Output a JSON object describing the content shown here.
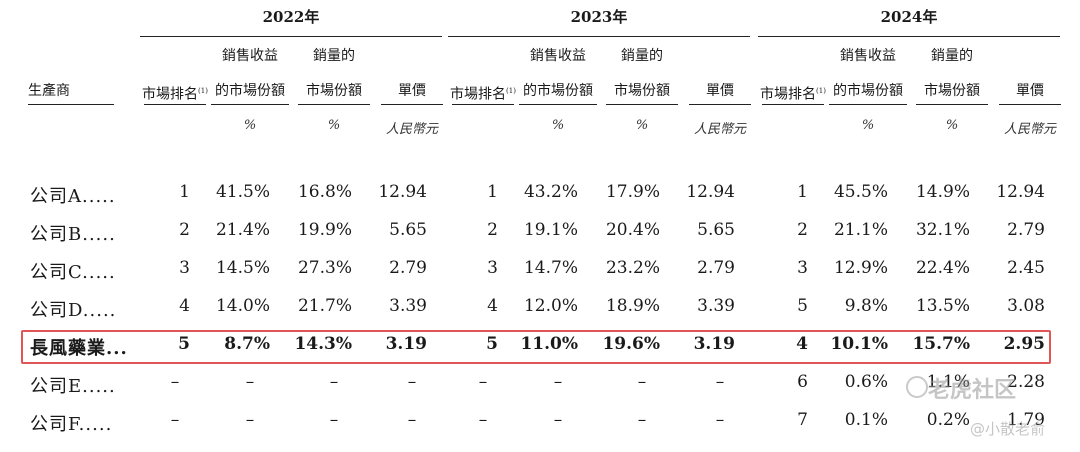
{
  "years": [
    "2022年",
    "2023年",
    "2024年"
  ],
  "producer_label": "生產商",
  "col_headers": {
    "rank": "市場排名",
    "rank_note": "(1)",
    "revenue_share_line1": "銷售收益",
    "revenue_share_line2": "的市場份額",
    "volume_share_line1": "銷量的",
    "volume_share_line2": "市場份額",
    "price": "單價"
  },
  "units": {
    "pct": "%",
    "rmb": "人民幣元"
  },
  "rows": [
    {
      "name": "公司A.....",
      "c": [
        "1",
        "41.5%",
        "16.8%",
        "12.94",
        "1",
        "43.2%",
        "17.9%",
        "12.94",
        "1",
        "45.5%",
        "14.9%",
        "12.94"
      ]
    },
    {
      "name": "公司B.....",
      "c": [
        "2",
        "21.4%",
        "19.9%",
        "5.65",
        "2",
        "19.1%",
        "20.4%",
        "5.65",
        "2",
        "21.1%",
        "32.1%",
        "2.79"
      ]
    },
    {
      "name": "公司C.....",
      "c": [
        "3",
        "14.5%",
        "27.3%",
        "2.79",
        "3",
        "14.7%",
        "23.2%",
        "2.79",
        "3",
        "12.9%",
        "22.4%",
        "2.45"
      ]
    },
    {
      "name": "公司D.....",
      "c": [
        "4",
        "14.0%",
        "21.7%",
        "3.39",
        "4",
        "12.0%",
        "18.9%",
        "3.39",
        "5",
        "9.8%",
        "13.5%",
        "3.08"
      ]
    },
    {
      "name": "長風藥業...",
      "c": [
        "5",
        "8.7%",
        "14.3%",
        "3.19",
        "5",
        "11.0%",
        "19.6%",
        "3.19",
        "4",
        "10.1%",
        "15.7%",
        "2.95"
      ]
    },
    {
      "name": "公司E.....",
      "c": [
        "–",
        "–",
        "–",
        "–",
        "–",
        "–",
        "–",
        "–",
        "6",
        "0.6%",
        "1.1%",
        "2.28"
      ]
    },
    {
      "name": "公司F.....",
      "c": [
        "–",
        "–",
        "–",
        "–",
        "–",
        "–",
        "–",
        "–",
        "7",
        "0.1%",
        "0.2%",
        "1.79"
      ]
    }
  ],
  "watermark": {
    "logo": "老虎社区",
    "author": "@小散老俞"
  }
}
